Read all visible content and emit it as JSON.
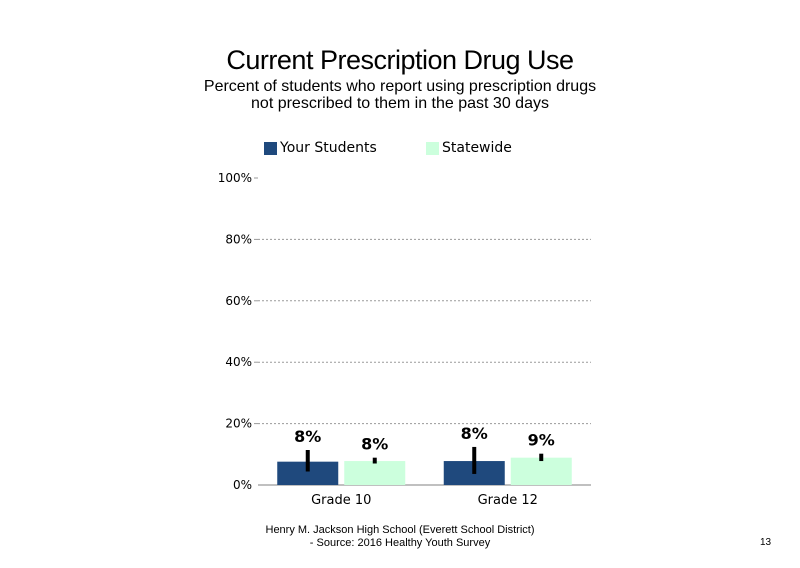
{
  "chart_data": {
    "type": "bar",
    "title": "Current Prescription Drug Use",
    "subtitle_lines": [
      "Percent of students  who report using prescription drugs",
      "not prescribed to them in the past 30 days"
    ],
    "categories": [
      "Grade 10",
      "Grade 12"
    ],
    "series": [
      {
        "name": "Your Students",
        "color": "#1f497d",
        "values": [
          7.6,
          7.8
        ],
        "labels": [
          "8%",
          "8%"
        ],
        "error_low": [
          4.4,
          3.6
        ],
        "error_high": [
          11.4,
          12.4
        ]
      },
      {
        "name": "Statewide",
        "color": "#ccffdd",
        "values": [
          7.8,
          8.9
        ],
        "labels": [
          "8%",
          "9%"
        ],
        "error_low": [
          7.0,
          7.8
        ],
        "error_high": [
          8.9,
          10.2
        ]
      }
    ],
    "ylim": [
      0,
      100
    ],
    "y_ticks": [
      "0%",
      "20%",
      "40%",
      "60%",
      "80%",
      "100%"
    ],
    "gridlines": "dotted",
    "legend_position": "top"
  },
  "footer": {
    "line1": "Henry M.  Jackson High  School (Everett School District)",
    "line2": "- Source: 2016 Healthy  Youth Survey"
  },
  "page_number": "13"
}
